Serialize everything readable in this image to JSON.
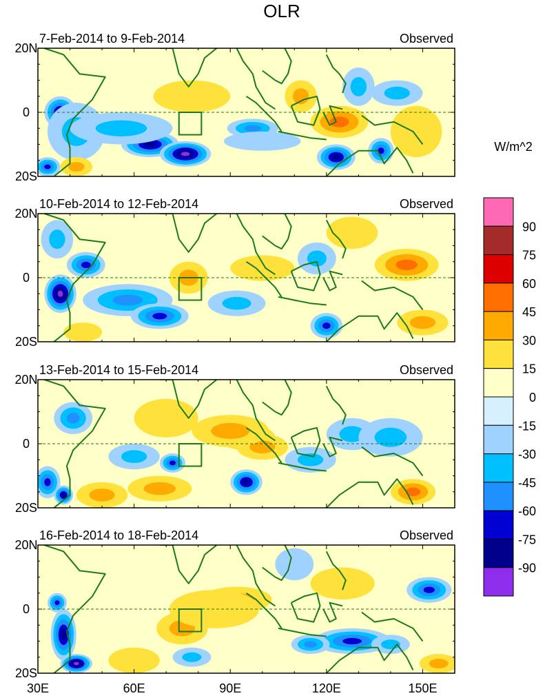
{
  "chart_data": {
    "type": "heatmap",
    "title": "OLR",
    "units": "W/m^2",
    "x_ticks": [
      "30E",
      "60E",
      "90E",
      "120E",
      "150E"
    ],
    "x_tick_values": [
      30,
      60,
      90,
      120,
      150
    ],
    "xlim": [
      30,
      160
    ],
    "y_ticks": [
      "20N",
      "0",
      "20S"
    ],
    "y_tick_values": [
      20,
      0,
      -20
    ],
    "ylim": [
      -20,
      20
    ],
    "box_region": {
      "lon": [
        74,
        81
      ],
      "lat": [
        -7,
        0
      ]
    },
    "colorbar": {
      "colors": [
        "#8e2eec",
        "#00008c",
        "#0000d2",
        "#1e90ff",
        "#00bfff",
        "#a0d2ff",
        "#d6f0ff",
        "#ffffc8",
        "#ffe13c",
        "#ffaa00",
        "#ff6e00",
        "#dc0000",
        "#a52a2a",
        "#ff69b4"
      ],
      "labels": [
        "-90",
        "-75",
        "-60",
        "-45",
        "-30",
        "-15",
        "0",
        "15",
        "30",
        "45",
        "60",
        "75",
        "90"
      ]
    },
    "panels": [
      {
        "left_label": "7-Feb-2014 to 9-Feb-2014",
        "right_label": "Observed",
        "anomalies": [
          {
            "lon": 37,
            "lat": 0,
            "value": -80,
            "rx": 5,
            "ry": 5
          },
          {
            "lon": 33,
            "lat": -17,
            "value": -70,
            "rx": 4,
            "ry": 3
          },
          {
            "lon": 42,
            "lat": -6,
            "value": -35,
            "rx": 9,
            "ry": 9
          },
          {
            "lon": 65,
            "lat": -10,
            "value": -85,
            "rx": 9,
            "ry": 4
          },
          {
            "lon": 76,
            "lat": -13,
            "value": -95,
            "rx": 8,
            "ry": 4
          },
          {
            "lon": 56,
            "lat": -5,
            "value": -40,
            "rx": 16,
            "ry": 5
          },
          {
            "lon": 42,
            "lat": -17,
            "value": 30,
            "rx": 5,
            "ry": 3
          },
          {
            "lon": 78,
            "lat": 5,
            "value": 25,
            "rx": 12,
            "ry": 5
          },
          {
            "lon": 97,
            "lat": -5,
            "value": -45,
            "rx": 8,
            "ry": 3
          },
          {
            "lon": 112,
            "lat": 5,
            "value": 40,
            "rx": 5,
            "ry": 5
          },
          {
            "lon": 124,
            "lat": -3,
            "value": 45,
            "rx": 9,
            "ry": 5
          },
          {
            "lon": 130,
            "lat": 8,
            "value": -30,
            "rx": 5,
            "ry": 6
          },
          {
            "lon": 142,
            "lat": 6,
            "value": -35,
            "rx": 8,
            "ry": 4
          },
          {
            "lon": 123,
            "lat": -14,
            "value": -75,
            "rx": 6,
            "ry": 4
          },
          {
            "lon": 137,
            "lat": -12,
            "value": -70,
            "rx": 4,
            "ry": 4
          },
          {
            "lon": 148,
            "lat": -6,
            "value": 25,
            "rx": 8,
            "ry": 8
          },
          {
            "lon": 100,
            "lat": -9,
            "value": -20,
            "rx": 12,
            "ry": 3
          }
        ]
      },
      {
        "left_label": "10-Feb-2014 to 12-Feb-2014",
        "right_label": "Observed",
        "anomalies": [
          {
            "lon": 37,
            "lat": -5,
            "value": -90,
            "rx": 5,
            "ry": 6
          },
          {
            "lon": 45,
            "lat": 4,
            "value": -65,
            "rx": 6,
            "ry": 4
          },
          {
            "lon": 58,
            "lat": -7,
            "value": -50,
            "rx": 14,
            "ry": 5
          },
          {
            "lon": 68,
            "lat": -12,
            "value": -60,
            "rx": 9,
            "ry": 4
          },
          {
            "lon": 36,
            "lat": 12,
            "value": -30,
            "rx": 5,
            "ry": 6
          },
          {
            "lon": 77,
            "lat": 0,
            "value": 30,
            "rx": 6,
            "ry": 5
          },
          {
            "lon": 92,
            "lat": -8,
            "value": -40,
            "rx": 9,
            "ry": 4
          },
          {
            "lon": 100,
            "lat": 3,
            "value": 20,
            "rx": 10,
            "ry": 4
          },
          {
            "lon": 117,
            "lat": 6,
            "value": -35,
            "rx": 6,
            "ry": 5
          },
          {
            "lon": 145,
            "lat": 4,
            "value": 50,
            "rx": 10,
            "ry": 5
          },
          {
            "lon": 150,
            "lat": -14,
            "value": 40,
            "rx": 8,
            "ry": 4
          },
          {
            "lon": 120,
            "lat": -15,
            "value": -60,
            "rx": 5,
            "ry": 4
          },
          {
            "lon": 44,
            "lat": -17,
            "value": 25,
            "rx": 6,
            "ry": 3
          },
          {
            "lon": 128,
            "lat": 14,
            "value": 20,
            "rx": 8,
            "ry": 5
          }
        ]
      },
      {
        "left_label": "13-Feb-2014 to 15-Feb-2014",
        "right_label": "Observed",
        "anomalies": [
          {
            "lon": 95,
            "lat": 2,
            "value": 65,
            "rx": 9,
            "ry": 4
          },
          {
            "lon": 100,
            "lat": -1,
            "value": 40,
            "rx": 8,
            "ry": 4
          },
          {
            "lon": 90,
            "lat": 4,
            "value": 30,
            "rx": 12,
            "ry": 5
          },
          {
            "lon": 68,
            "lat": -14,
            "value": 40,
            "rx": 10,
            "ry": 4
          },
          {
            "lon": 50,
            "lat": -16,
            "value": 30,
            "rx": 8,
            "ry": 4
          },
          {
            "lon": 147,
            "lat": -15,
            "value": 45,
            "rx": 7,
            "ry": 4
          },
          {
            "lon": 95,
            "lat": -12,
            "value": -75,
            "rx": 5,
            "ry": 4
          },
          {
            "lon": 72,
            "lat": -6,
            "value": -60,
            "rx": 4,
            "ry": 3
          },
          {
            "lon": 41,
            "lat": 8,
            "value": -50,
            "rx": 6,
            "ry": 5
          },
          {
            "lon": 60,
            "lat": -4,
            "value": -30,
            "rx": 8,
            "ry": 4
          },
          {
            "lon": 115,
            "lat": -5,
            "value": -30,
            "rx": 8,
            "ry": 4
          },
          {
            "lon": 33,
            "lat": -12,
            "value": -65,
            "rx": 4,
            "ry": 5
          },
          {
            "lon": 38,
            "lat": -16,
            "value": -80,
            "rx": 3,
            "ry": 3
          },
          {
            "lon": 128,
            "lat": 3,
            "value": -40,
            "rx": 8,
            "ry": 5
          },
          {
            "lon": 140,
            "lat": 2,
            "value": -30,
            "rx": 10,
            "ry": 6
          },
          {
            "lon": 70,
            "lat": 8,
            "value": 20,
            "rx": 10,
            "ry": 6
          }
        ]
      },
      {
        "left_label": "16-Feb-2014 to 18-Feb-2014",
        "right_label": "Observed",
        "anomalies": [
          {
            "lon": 38,
            "lat": -8,
            "value": -85,
            "rx": 4,
            "ry": 8
          },
          {
            "lon": 42,
            "lat": -17,
            "value": -90,
            "rx": 5,
            "ry": 3
          },
          {
            "lon": 36,
            "lat": 2,
            "value": -70,
            "rx": 3,
            "ry": 3
          },
          {
            "lon": 75,
            "lat": -6,
            "value": 30,
            "rx": 8,
            "ry": 5
          },
          {
            "lon": 92,
            "lat": 3,
            "value": 40,
            "rx": 11,
            "ry": 4
          },
          {
            "lon": 85,
            "lat": 0,
            "value": 25,
            "rx": 14,
            "ry": 6
          },
          {
            "lon": 152,
            "lat": 6,
            "value": -65,
            "rx": 7,
            "ry": 4
          },
          {
            "lon": 128,
            "lat": -10,
            "value": -65,
            "rx": 12,
            "ry": 4
          },
          {
            "lon": 115,
            "lat": -11,
            "value": -50,
            "rx": 6,
            "ry": 3
          },
          {
            "lon": 140,
            "lat": -11,
            "value": -40,
            "rx": 6,
            "ry": 3
          },
          {
            "lon": 125,
            "lat": 8,
            "value": 25,
            "rx": 10,
            "ry": 5
          },
          {
            "lon": 155,
            "lat": -17,
            "value": 30,
            "rx": 6,
            "ry": 3
          },
          {
            "lon": 60,
            "lat": -16,
            "value": 25,
            "rx": 8,
            "ry": 4
          },
          {
            "lon": 110,
            "lat": 14,
            "value": -25,
            "rx": 6,
            "ry": 5
          },
          {
            "lon": 78,
            "lat": -15,
            "value": -30,
            "rx": 6,
            "ry": 3
          }
        ]
      }
    ]
  }
}
